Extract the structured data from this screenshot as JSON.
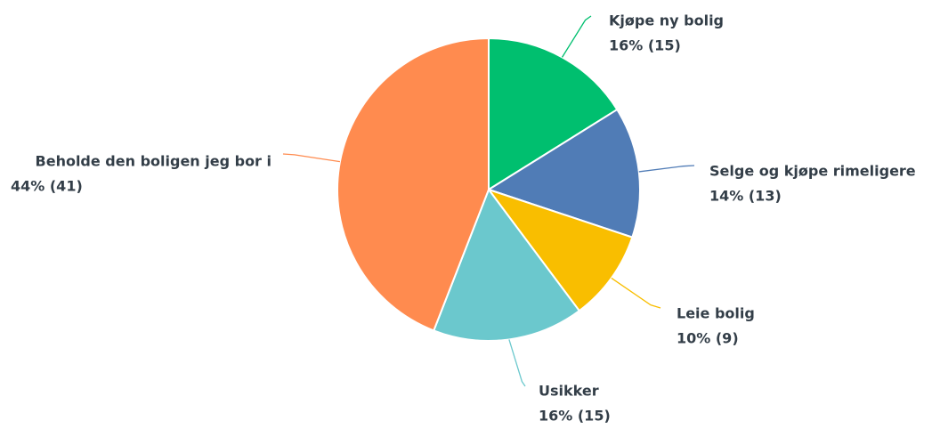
{
  "chart_data": {
    "type": "pie",
    "categories": [
      "Kjøpe ny bolig",
      "Selge og kjøpe rimeligere",
      "Leie bolig",
      "Usikker",
      "Beholde den boligen jeg bor i"
    ],
    "values": [
      16,
      14,
      10,
      16,
      44
    ],
    "counts": [
      15,
      13,
      9,
      15,
      41
    ],
    "value_labels": [
      "16% (15)",
      "14% (13)",
      "10% (9)",
      "16% (15)",
      "44% (41)"
    ],
    "colors": [
      "#00bf6f",
      "#507cb6",
      "#f9be00",
      "#6bc8cd",
      "#ff8b4f"
    ]
  }
}
